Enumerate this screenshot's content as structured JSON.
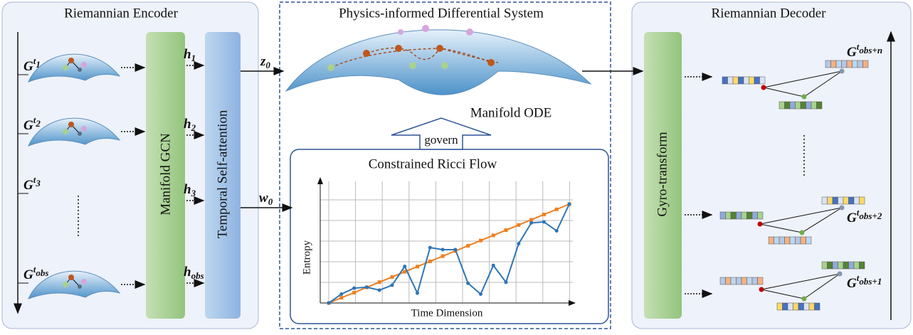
{
  "encoder": {
    "title": "Riemannian Encoder",
    "gcn": "Manifold GCN",
    "attention": "Temporal Self-attention",
    "graphs": [
      {
        "symbol": "G",
        "superscript": "t",
        "subscript": "1"
      },
      {
        "symbol": "G",
        "superscript": "t",
        "subscript": "2"
      },
      {
        "symbol": "G",
        "superscript": "t",
        "subscript": "3"
      },
      {
        "symbol": "G",
        "superscript": "t",
        "subscript": "obs"
      }
    ],
    "hidden": [
      {
        "symbol": "h",
        "subscript": "1"
      },
      {
        "symbol": "h",
        "subscript": "2"
      },
      {
        "symbol": "h",
        "subscript": "3"
      },
      {
        "symbol": "h",
        "subscript": "obs"
      }
    ]
  },
  "system": {
    "title": "Physics-informed Differential System",
    "ode": "Manifold ODE",
    "govern": "govern",
    "z": {
      "symbol": "z",
      "subscript": "0"
    },
    "w": {
      "symbol": "w",
      "subscript": "0"
    },
    "ricci_flow": {
      "title": "Constrained Ricci Flow",
      "y_label": "Entropy",
      "x_label": "Time Dimension",
      "chart_data": {
        "type": "line",
        "series": [
          {
            "color": "#f07f1f",
            "values": [
              0,
              0.053,
              0.105,
              0.158,
              0.211,
              0.263,
              0.316,
              0.368,
              0.421,
              0.474,
              0.526,
              0.579,
              0.632,
              0.684,
              0.737,
              0.789,
              0.842,
              0.895,
              0.947,
              1.0
            ]
          },
          {
            "color": "#2e75b6",
            "values": [
              0,
              0.09,
              0.15,
              0.16,
              0.13,
              0.18,
              0.37,
              0.1,
              0.56,
              0.54,
              0.54,
              0.2,
              0.09,
              0.38,
              0.21,
              0.6,
              0.81,
              0.82,
              0.73,
              1.0
            ]
          }
        ]
      }
    }
  },
  "decoder": {
    "title": "Riemannian Decoder",
    "gyro": "Gyro-transform",
    "outputs": [
      {
        "symbol": "G",
        "superscript": "t",
        "subscript": "obs+n"
      },
      {
        "symbol": "G",
        "superscript": "t",
        "subscript": "obs+2"
      },
      {
        "symbol": "G",
        "superscript": "t",
        "subscript": "obs+1"
      }
    ]
  }
}
